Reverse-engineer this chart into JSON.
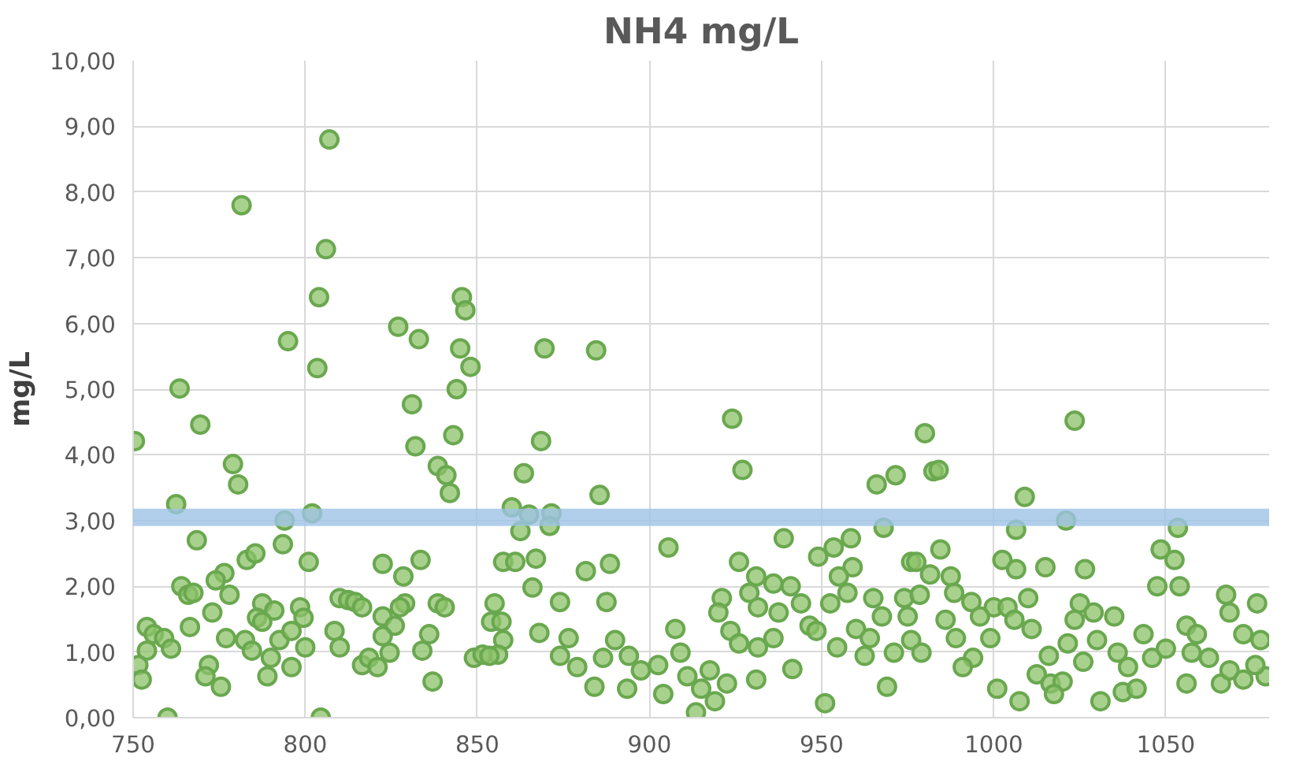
{
  "chart_data": {
    "type": "scatter",
    "title": "NH4 mg/L",
    "ylabel": "mg/L",
    "marker": "circle",
    "grid": true,
    "xlim": [
      750,
      1080
    ],
    "xticks": [
      750,
      800,
      850,
      900,
      950,
      1000,
      1050
    ],
    "ylim": [
      0,
      10
    ],
    "yticks": [
      {
        "value": 0,
        "label": "0,00"
      },
      {
        "value": 1,
        "label": "1,00"
      },
      {
        "value": 2,
        "label": "2,00"
      },
      {
        "value": 3,
        "label": "3,00"
      },
      {
        "value": 4,
        "label": "4,00"
      },
      {
        "value": 5,
        "label": "5,00"
      },
      {
        "value": 6,
        "label": "6,00"
      },
      {
        "value": 7,
        "label": "7,00"
      },
      {
        "value": 8,
        "label": "8,00"
      },
      {
        "value": 9,
        "label": "9,00"
      },
      {
        "value": 10,
        "label": "10,00"
      }
    ],
    "ref_lines": [
      {
        "axis": "y",
        "value": 3.05,
        "color": "#9dc3e6"
      }
    ],
    "series": [
      {
        "color": "#8cc168",
        "x": [
          807,
          781.5,
          806,
          804,
          845.5,
          846.5,
          827,
          833,
          795,
          845,
          848,
          803.5,
          763.5,
          844,
          831,
          769.5,
          843,
          750.5,
          832,
          779,
          780.5,
          838.5,
          841,
          842,
          762.5,
          794,
          802,
          768.5,
          793.5,
          801,
          783,
          785.5,
          822.5,
          833.5,
          828.5,
          776.5,
          774,
          764,
          766,
          767.5,
          778,
          810,
          812.5,
          814.5,
          816.5,
          773,
          787.5,
          791,
          786,
          798.5,
          799.5,
          822.5,
          826,
          829,
          827.5,
          838.5,
          840.5,
          855,
          854,
          857,
          766.5,
          787.5,
          792.5,
          754,
          756,
          759,
          761,
          754,
          751.5,
          752.5,
          777,
          782.5,
          784.5,
          796,
          800,
          808.5,
          810,
          822.5,
          824.5,
          836,
          834,
          857.5,
          856,
          849,
          851.5,
          853.5,
          772,
          771,
          775.5,
          790,
          789,
          796,
          816.5,
          818.5,
          821,
          837,
          760,
          804.5,
          869.5,
          884.5,
          924,
          927,
          868.5,
          863.5,
          860,
          865,
          871.5,
          862.5,
          871,
          885.5,
          857.5,
          861,
          867,
          866,
          881.5,
          888.5,
          874,
          887.5,
          868,
          905.5,
          876.5,
          874,
          879,
          884,
          886.5,
          890,
          894,
          897.5,
          902.5,
          907.5,
          909,
          911,
          915,
          917.5,
          919,
          913.5,
          922.5,
          893.5,
          904,
          926,
          931,
          936,
          939,
          921,
          920,
          923.5,
          929,
          931.5,
          937.5,
          941,
          944,
          946.5,
          948.5,
          926,
          931.5,
          936,
          931,
          941.5,
          951,
          966,
          971.5,
          968,
          949,
          953.5,
          958.5,
          959,
          955,
          957.5,
          952.5,
          965,
          967.5,
          960,
          964,
          962.5,
          954.5,
          971,
          969,
          974,
          976,
          980,
          982.5,
          984,
          1023.5,
          1009,
          1021,
          1006.5,
          1053.5,
          984.5,
          977.5,
          981.5,
          987.5,
          1002.5,
          1006.5,
          1015,
          1026.5,
          1048.5,
          1052.5,
          1047.5,
          1054,
          1067.5,
          1068.5,
          1076.5,
          1072.5,
          1077.5,
          978.5,
          988.5,
          993.5,
          1000,
          1004,
          1010,
          975,
          986,
          996,
          1006,
          1011,
          976,
          989,
          999,
          979,
          994,
          1016,
          991,
          1001,
          1012.5,
          1016.5,
          1020,
          1007.5,
          1017.5,
          1025,
          1029,
          1035,
          1023.5,
          1021.5,
          1026,
          1030,
          1036,
          1039,
          1043.5,
          1046,
          1050,
          1056,
          1059,
          1062.5,
          1037.5,
          1041.5,
          1031,
          1056,
          1066,
          1072.5,
          1079,
          1076,
          1068.5,
          1057.5
        ],
        "values": [
          8.8,
          7.8,
          7.13,
          6.4,
          6.4,
          6.2,
          5.95,
          5.76,
          5.73,
          5.62,
          5.34,
          5.32,
          5.01,
          5.0,
          4.77,
          4.46,
          4.3,
          4.21,
          4.13,
          3.86,
          3.55,
          3.83,
          3.69,
          3.42,
          3.25,
          3.0,
          3.11,
          2.7,
          2.64,
          2.37,
          2.4,
          2.5,
          2.34,
          2.4,
          2.15,
          2.2,
          2.09,
          2.0,
          1.87,
          1.9,
          1.87,
          1.82,
          1.79,
          1.76,
          1.68,
          1.6,
          1.74,
          1.63,
          1.52,
          1.68,
          1.52,
          1.54,
          1.4,
          1.74,
          1.68,
          1.74,
          1.68,
          1.74,
          1.46,
          1.46,
          1.38,
          1.46,
          1.18,
          1.38,
          1.27,
          1.21,
          1.05,
          1.02,
          0.8,
          0.58,
          1.21,
          1.18,
          1.02,
          1.32,
          1.07,
          1.32,
          1.07,
          1.24,
          0.99,
          1.27,
          1.02,
          1.18,
          0.96,
          0.91,
          0.96,
          0.94,
          0.8,
          0.63,
          0.47,
          0.91,
          0.63,
          0.77,
          0.8,
          0.91,
          0.77,
          0.55,
          0.0,
          0.0,
          5.62,
          5.59,
          4.55,
          3.77,
          4.21,
          3.72,
          3.2,
          3.09,
          3.11,
          2.84,
          2.92,
          3.39,
          2.37,
          2.37,
          2.42,
          1.98,
          2.23,
          2.34,
          1.76,
          1.76,
          1.29,
          2.59,
          1.21,
          0.94,
          0.77,
          0.47,
          0.91,
          1.18,
          0.94,
          0.72,
          0.8,
          1.35,
          0.99,
          0.63,
          0.44,
          0.72,
          0.25,
          0.08,
          0.52,
          0.44,
          0.36,
          2.37,
          2.15,
          2.04,
          2.73,
          1.82,
          1.6,
          1.32,
          1.9,
          1.68,
          1.6,
          2.0,
          1.74,
          1.4,
          1.32,
          1.13,
          1.07,
          1.21,
          0.58,
          0.74,
          0.22,
          3.55,
          3.69,
          2.89,
          2.45,
          2.59,
          2.73,
          2.29,
          2.15,
          1.9,
          1.74,
          1.82,
          1.54,
          1.35,
          1.21,
          0.94,
          1.07,
          0.99,
          0.47,
          1.82,
          2.37,
          4.33,
          3.75,
          3.77,
          4.52,
          3.36,
          3.0,
          2.86,
          2.89,
          2.56,
          2.37,
          2.18,
          2.15,
          2.4,
          2.26,
          2.29,
          2.26,
          2.56,
          2.4,
          2.0,
          2.0,
          1.87,
          1.6,
          1.74,
          1.27,
          1.18,
          1.87,
          1.9,
          1.76,
          1.68,
          1.68,
          1.82,
          1.54,
          1.49,
          1.54,
          1.49,
          1.35,
          1.18,
          1.21,
          1.21,
          0.99,
          0.91,
          0.94,
          0.77,
          0.44,
          0.66,
          0.52,
          0.55,
          0.25,
          0.36,
          1.74,
          1.6,
          1.54,
          1.49,
          1.13,
          0.85,
          1.18,
          0.99,
          0.77,
          1.27,
          0.91,
          1.05,
          1.4,
          1.27,
          0.91,
          0.39,
          0.44,
          0.25,
          0.52,
          0.52,
          0.58,
          0.63,
          0.8,
          0.72,
          0.99
        ]
      }
    ]
  }
}
